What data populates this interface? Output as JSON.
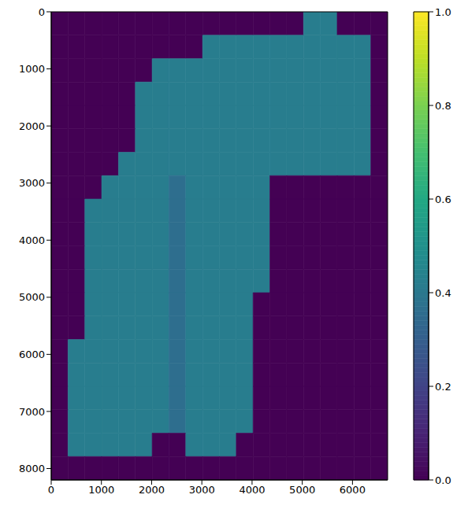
{
  "chart_data": {
    "type": "heatmap",
    "xlim": [
      0,
      6700
    ],
    "ylim": [
      0,
      8200
    ],
    "xticks": [
      0,
      1000,
      2000,
      3000,
      4000,
      5000,
      6000
    ],
    "yticks": [
      0,
      1000,
      2000,
      3000,
      4000,
      5000,
      6000,
      7000,
      8000
    ],
    "cells": [
      [
        0,
        0,
        0,
        0,
        0,
        0,
        0,
        0,
        0,
        0,
        0,
        0,
        0,
        0,
        0,
        0.42,
        0.42,
        0,
        0,
        0
      ],
      [
        0,
        0,
        0,
        0,
        0,
        0,
        0,
        0,
        0,
        0.42,
        0.42,
        0.42,
        0.42,
        0.42,
        0.42,
        0.42,
        0.42,
        0.42,
        0.42,
        0
      ],
      [
        0,
        0,
        0,
        0,
        0,
        0,
        0.42,
        0.42,
        0.42,
        0.42,
        0.42,
        0.42,
        0.42,
        0.42,
        0.42,
        0.42,
        0.42,
        0.42,
        0.42,
        0
      ],
      [
        0,
        0,
        0,
        0,
        0,
        0.42,
        0.42,
        0.42,
        0.42,
        0.42,
        0.42,
        0.42,
        0.42,
        0.42,
        0.42,
        0.42,
        0.42,
        0.42,
        0.42,
        0
      ],
      [
        0,
        0,
        0,
        0,
        0,
        0.42,
        0.42,
        0.42,
        0.42,
        0.42,
        0.42,
        0.42,
        0.42,
        0.42,
        0.42,
        0.42,
        0.42,
        0.42,
        0.42,
        0
      ],
      [
        0,
        0,
        0,
        0,
        0,
        0.42,
        0.42,
        0.42,
        0.42,
        0.42,
        0.42,
        0.42,
        0.42,
        0.42,
        0.42,
        0.42,
        0.42,
        0.42,
        0.42,
        0
      ],
      [
        0,
        0,
        0,
        0,
        0.42,
        0.42,
        0.42,
        0.42,
        0.42,
        0.42,
        0.42,
        0.42,
        0.42,
        0.42,
        0.42,
        0.42,
        0.42,
        0.42,
        0.42,
        0
      ],
      [
        0,
        0,
        0,
        0.42,
        0.42,
        0.42,
        0.42,
        0.36,
        0.42,
        0.42,
        0.42,
        0.42,
        0.42,
        0,
        0,
        0,
        0,
        0,
        0,
        0
      ],
      [
        0,
        0,
        0.42,
        0.42,
        0.42,
        0.42,
        0.42,
        0.36,
        0.42,
        0.42,
        0.42,
        0.42,
        0.42,
        0,
        0,
        0,
        0,
        0,
        0,
        0
      ],
      [
        0,
        0,
        0.42,
        0.42,
        0.42,
        0.42,
        0.42,
        0.36,
        0.42,
        0.42,
        0.42,
        0.42,
        0.42,
        0,
        0,
        0,
        0,
        0,
        0,
        0
      ],
      [
        0,
        0,
        0.42,
        0.42,
        0.42,
        0.42,
        0.42,
        0.36,
        0.42,
        0.42,
        0.42,
        0.42,
        0.42,
        0,
        0,
        0,
        0,
        0,
        0,
        0
      ],
      [
        0,
        0,
        0.42,
        0.42,
        0.42,
        0.42,
        0.42,
        0.36,
        0.42,
        0.42,
        0.42,
        0.42,
        0.42,
        0,
        0,
        0,
        0,
        0,
        0,
        0
      ],
      [
        0,
        0,
        0.42,
        0.42,
        0.42,
        0.42,
        0.42,
        0.36,
        0.42,
        0.42,
        0.42,
        0.42,
        0,
        0,
        0,
        0,
        0,
        0,
        0,
        0
      ],
      [
        0,
        0,
        0.42,
        0.42,
        0.42,
        0.42,
        0.42,
        0.36,
        0.42,
        0.42,
        0.42,
        0.42,
        0,
        0,
        0,
        0,
        0,
        0,
        0,
        0
      ],
      [
        0,
        0.42,
        0.42,
        0.42,
        0.42,
        0.42,
        0.42,
        0.36,
        0.42,
        0.42,
        0.42,
        0.42,
        0,
        0,
        0,
        0,
        0,
        0,
        0,
        0
      ],
      [
        0,
        0.42,
        0.42,
        0.42,
        0.42,
        0.42,
        0.42,
        0.36,
        0.42,
        0.42,
        0.42,
        0.42,
        0,
        0,
        0,
        0,
        0,
        0,
        0,
        0
      ],
      [
        0,
        0.42,
        0.42,
        0.42,
        0.42,
        0.42,
        0.42,
        0.36,
        0.42,
        0.42,
        0.42,
        0.42,
        0,
        0,
        0,
        0,
        0,
        0,
        0,
        0
      ],
      [
        0,
        0.42,
        0.42,
        0.42,
        0.42,
        0.42,
        0.42,
        0.36,
        0.42,
        0.42,
        0.42,
        0.42,
        0,
        0,
        0,
        0,
        0,
        0,
        0,
        0
      ],
      [
        0,
        0.42,
        0.42,
        0.42,
        0.42,
        0.42,
        0,
        0,
        0.42,
        0.42,
        0.42,
        0,
        0,
        0,
        0,
        0,
        0,
        0,
        0,
        0
      ],
      [
        0,
        0,
        0,
        0,
        0,
        0,
        0,
        0,
        0,
        0,
        0,
        0,
        0,
        0,
        0,
        0,
        0,
        0,
        0,
        0
      ]
    ],
    "colorbar": {
      "range": [
        0,
        1
      ],
      "ticks": [
        {
          "value": 0,
          "label": "0.0"
        },
        {
          "value": 0.2,
          "label": "0.2"
        },
        {
          "value": 0.4,
          "label": "0.4"
        },
        {
          "value": 0.6,
          "label": "0.6"
        },
        {
          "value": 0.8,
          "label": "0.8"
        },
        {
          "value": 1,
          "label": "1.0"
        }
      ]
    }
  }
}
